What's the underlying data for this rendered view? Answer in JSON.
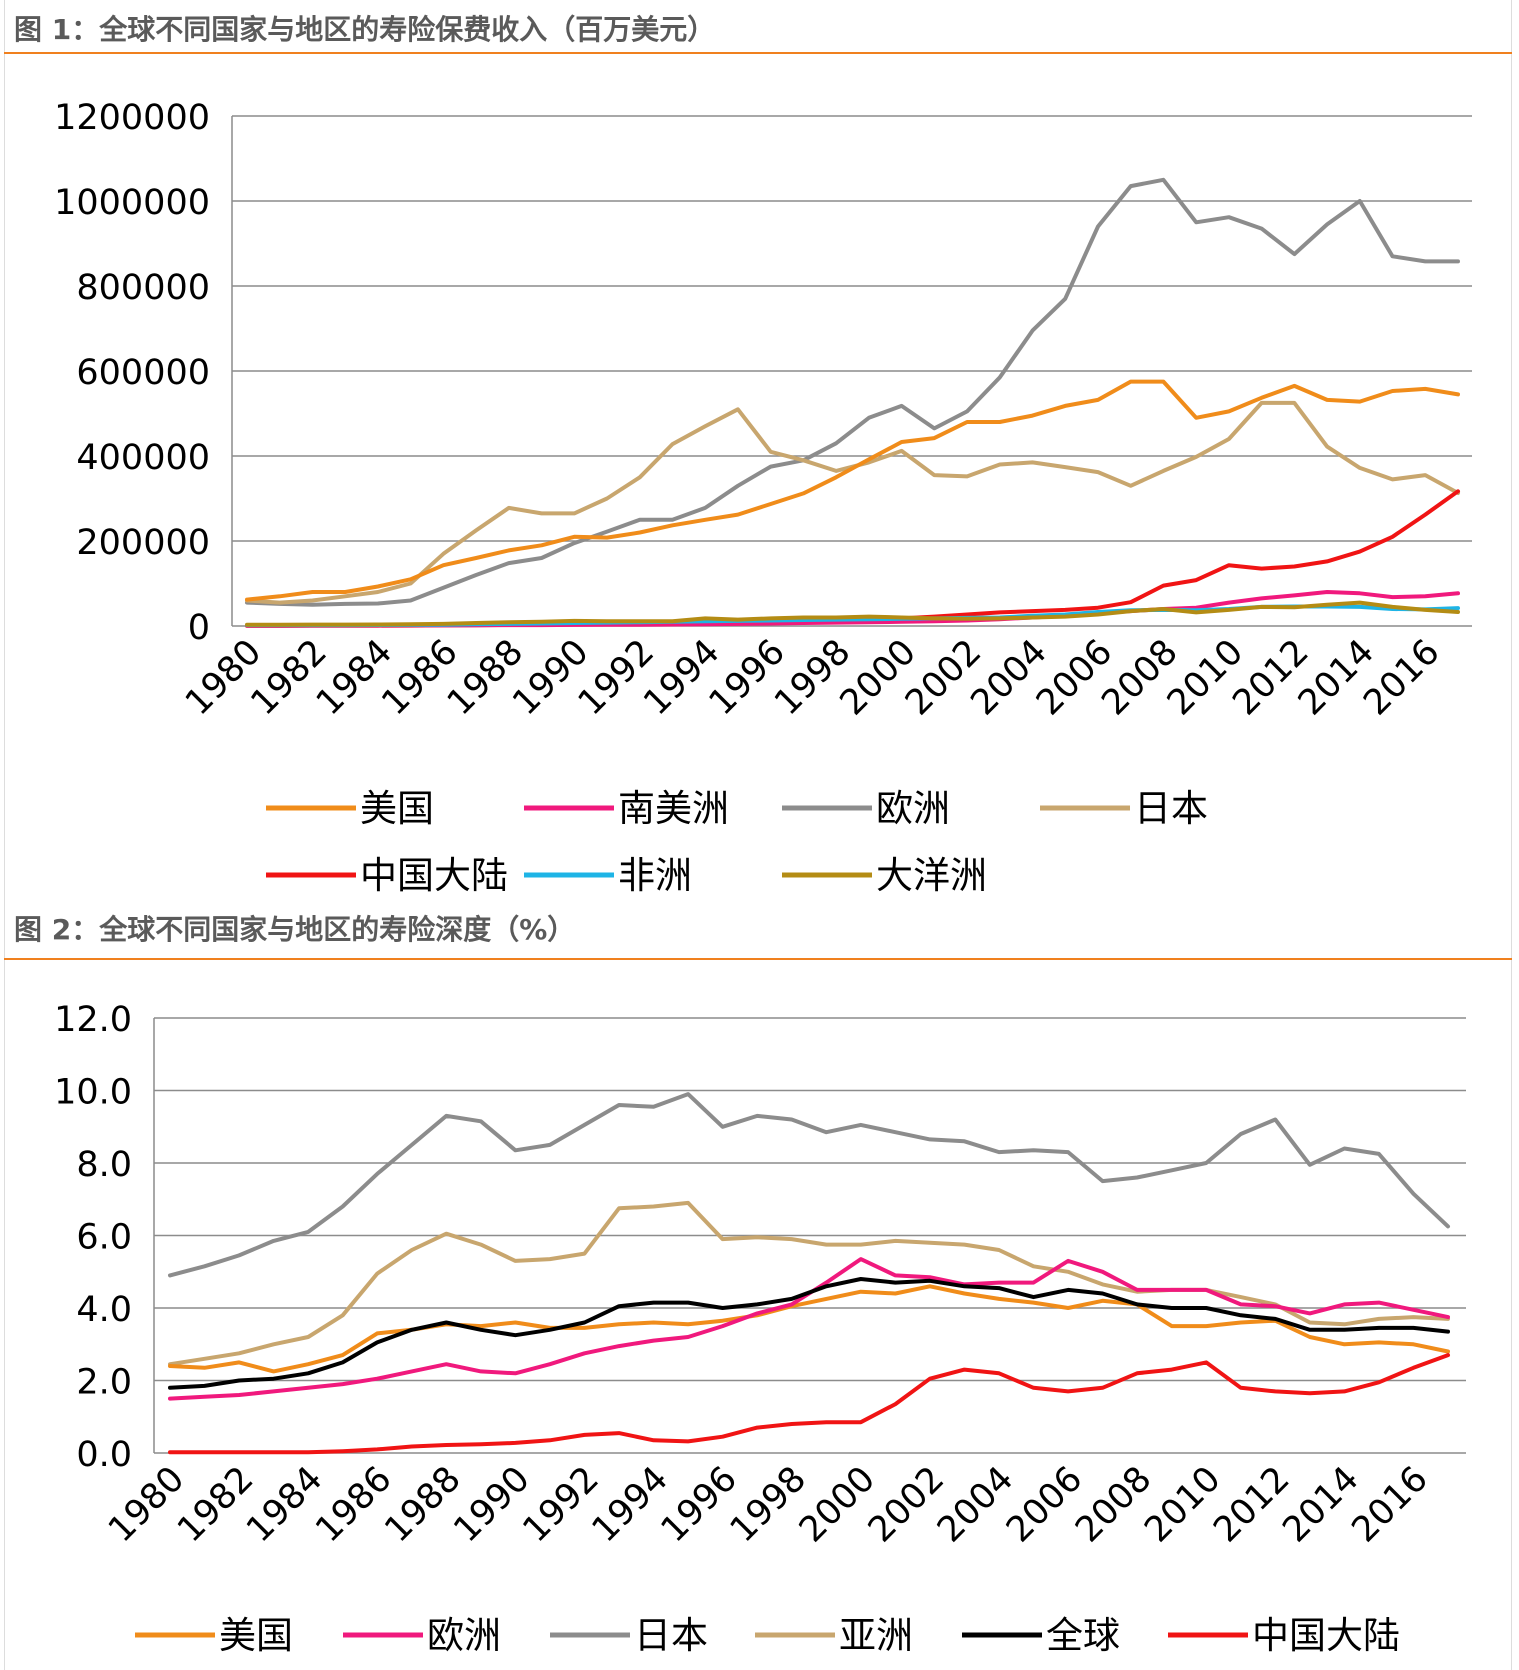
{
  "colors": {
    "us": "#f08c1a",
    "south_america": "#f0197d",
    "europe": "#8c8c8c",
    "japan": "#c8a66e",
    "china": "#f01414",
    "africa": "#1eb4e6",
    "oceania": "#b48c14",
    "asia": "#c8a66e",
    "global": "#000000",
    "europe2": "#f0197d",
    "japan2": "#8c8c8c",
    "rule": "#f0801e",
    "grid": "#8c8c8c"
  },
  "chart_data": [
    {
      "type": "line",
      "title": "图 1：全球不同国家与地区的寿险保费收入（百万美元）",
      "ylim": [
        0,
        1200000
      ],
      "yticks": [
        "1200000",
        "1000000",
        "800000",
        "600000",
        "400000",
        "200000",
        "0"
      ],
      "ytick_values": [
        1200000,
        1000000,
        800000,
        600000,
        400000,
        200000,
        0
      ],
      "xtick_labels": [
        "1980",
        "1982",
        "1984",
        "1986",
        "1988",
        "1990",
        "1992",
        "1994",
        "1996",
        "1998",
        "2000",
        "2002",
        "2004",
        "2006",
        "2008",
        "2010",
        "2012",
        "2014",
        "2016"
      ],
      "x": [
        1980,
        1981,
        1982,
        1983,
        1984,
        1985,
        1986,
        1987,
        1988,
        1989,
        1990,
        1991,
        1992,
        1993,
        1994,
        1995,
        1996,
        1997,
        1998,
        1999,
        2000,
        2001,
        2002,
        2003,
        2004,
        2005,
        2006,
        2007,
        2008,
        2009,
        2010,
        2011,
        2012,
        2013,
        2014,
        2015,
        2016,
        2017
      ],
      "series": [
        {
          "name": "欧洲",
          "color_key": "europe",
          "values": [
            55000,
            52000,
            50000,
            52000,
            53000,
            60000,
            90000,
            120000,
            148000,
            160000,
            195000,
            222000,
            250000,
            250000,
            278000,
            330000,
            375000,
            390000,
            430000,
            490000,
            518000,
            465000,
            505000,
            585000,
            695000,
            770000,
            940000,
            1035000,
            1050000,
            950000,
            962000,
            935000,
            875000,
            945000,
            1000000,
            870000,
            858000,
            858000
          ]
        },
        {
          "name": "日本",
          "color_key": "japan",
          "values": [
            60000,
            55000,
            60000,
            70000,
            80000,
            100000,
            170000,
            225000,
            278000,
            265000,
            265000,
            300000,
            350000,
            428000,
            470000,
            510000,
            410000,
            390000,
            365000,
            385000,
            412000,
            355000,
            352000,
            380000,
            385000,
            374000,
            362000,
            330000,
            365000,
            398000,
            440000,
            525000,
            525000,
            422000,
            372000,
            345000,
            355000,
            313000
          ]
        },
        {
          "name": "美国",
          "color_key": "us",
          "values": [
            62000,
            70000,
            80000,
            80000,
            93000,
            110000,
            143000,
            160000,
            178000,
            190000,
            210000,
            208000,
            220000,
            237000,
            250000,
            262000,
            287000,
            312000,
            350000,
            392000,
            433000,
            442000,
            480000,
            480000,
            495000,
            518000,
            532000,
            575000,
            575000,
            490000,
            505000,
            537000,
            565000,
            532000,
            528000,
            553000,
            558000,
            545000
          ]
        },
        {
          "name": "中国大陆",
          "color_key": "china",
          "values": [
            200,
            300,
            400,
            500,
            700,
            1000,
            1300,
            1800,
            2500,
            3000,
            3500,
            4500,
            6000,
            7000,
            5000,
            6000,
            8000,
            11000,
            13000,
            15000,
            18000,
            22000,
            27000,
            32000,
            35000,
            38000,
            43000,
            56000,
            95000,
            108000,
            143000,
            135000,
            140000,
            152000,
            175000,
            210000,
            262000,
            317000
          ]
        },
        {
          "name": "南美洲",
          "color_key": "south_america",
          "values": [
            1000,
            1000,
            1100,
            1100,
            1200,
            1300,
            1500,
            1700,
            2000,
            2200,
            2500,
            2800,
            3000,
            3500,
            4000,
            5000,
            6000,
            7000,
            8000,
            9000,
            10000,
            11000,
            13000,
            16000,
            20000,
            24000,
            30000,
            35000,
            40000,
            43000,
            55000,
            65000,
            72000,
            80000,
            77000,
            68000,
            70000,
            77000
          ]
        },
        {
          "name": "非洲",
          "color_key": "africa",
          "values": [
            2000,
            2000,
            2100,
            2200,
            2300,
            2500,
            3000,
            4000,
            5000,
            6000,
            7000,
            8000,
            9000,
            10000,
            11000,
            12000,
            13000,
            14000,
            15000,
            16000,
            17000,
            18000,
            19000,
            20000,
            24000,
            27000,
            33000,
            37000,
            38000,
            37000,
            40000,
            45000,
            46000,
            46000,
            45000,
            40000,
            39000,
            42000
          ]
        },
        {
          "name": "大洋洲",
          "color_key": "oceania",
          "values": [
            3000,
            3000,
            3200,
            3300,
            3500,
            4000,
            5000,
            7000,
            9000,
            10000,
            12000,
            11000,
            11000,
            11000,
            18000,
            15000,
            18000,
            20000,
            20000,
            22000,
            20000,
            18000,
            17000,
            18000,
            20000,
            22000,
            27000,
            35000,
            40000,
            32000,
            38000,
            45000,
            44000,
            50000,
            55000,
            45000,
            38000,
            33000
          ]
        }
      ],
      "legend": [
        {
          "label": "美国",
          "color_key": "us"
        },
        {
          "label": "南美洲",
          "color_key": "south_america"
        },
        {
          "label": "欧洲",
          "color_key": "europe"
        },
        {
          "label": "日本",
          "color_key": "japan"
        },
        {
          "label": "中国大陆",
          "color_key": "china"
        },
        {
          "label": "非洲",
          "color_key": "africa"
        },
        {
          "label": "大洋洲",
          "color_key": "oceania"
        }
      ]
    },
    {
      "type": "line",
      "title": "图 2：全球不同国家与地区的寿险深度（%）",
      "ylim": [
        0,
        12
      ],
      "yticks": [
        "12.0",
        "10.0",
        "8.0",
        "6.0",
        "4.0",
        "2.0",
        "0.0"
      ],
      "ytick_values": [
        12,
        10,
        8,
        6,
        4,
        2,
        0
      ],
      "xtick_labels": [
        "1980",
        "1982",
        "1984",
        "1986",
        "1988",
        "1990",
        "1992",
        "1994",
        "1996",
        "1998",
        "2000",
        "2002",
        "2004",
        "2006",
        "2008",
        "2010",
        "2012",
        "2014",
        "2016"
      ],
      "x": [
        1980,
        1981,
        1982,
        1983,
        1984,
        1985,
        1986,
        1987,
        1988,
        1989,
        1990,
        1991,
        1992,
        1993,
        1994,
        1995,
        1996,
        1997,
        1998,
        1999,
        2000,
        2001,
        2002,
        2003,
        2004,
        2005,
        2006,
        2007,
        2008,
        2009,
        2010,
        2011,
        2012,
        2013,
        2014,
        2015,
        2016,
        2017
      ],
      "series": [
        {
          "name": "日本",
          "color_key": "japan2",
          "values": [
            4.9,
            5.15,
            5.45,
            5.85,
            6.1,
            6.8,
            7.7,
            8.5,
            9.3,
            9.15,
            8.35,
            8.5,
            9.05,
            9.6,
            9.55,
            9.9,
            9.0,
            9.3,
            9.2,
            8.85,
            9.05,
            8.85,
            8.65,
            8.6,
            8.3,
            8.35,
            8.3,
            7.5,
            7.6,
            7.8,
            8.0,
            8.8,
            9.2,
            7.95,
            8.4,
            8.25,
            7.15,
            6.25
          ]
        },
        {
          "name": "亚洲",
          "color_key": "asia",
          "values": [
            2.45,
            2.6,
            2.75,
            3.0,
            3.2,
            3.8,
            4.95,
            5.6,
            6.05,
            5.75,
            5.3,
            5.35,
            5.5,
            6.75,
            6.8,
            6.9,
            5.9,
            5.95,
            5.9,
            5.75,
            5.75,
            5.85,
            5.8,
            5.75,
            5.6,
            5.15,
            5.0,
            4.65,
            4.45,
            4.5,
            4.5,
            4.3,
            4.1,
            3.6,
            3.55,
            3.7,
            3.75,
            3.7
          ]
        },
        {
          "name": "美国",
          "color_key": "us",
          "values": [
            2.4,
            2.35,
            2.5,
            2.25,
            2.45,
            2.7,
            3.3,
            3.4,
            3.55,
            3.5,
            3.6,
            3.45,
            3.45,
            3.55,
            3.6,
            3.55,
            3.65,
            3.8,
            4.05,
            4.25,
            4.45,
            4.4,
            4.6,
            4.4,
            4.25,
            4.15,
            4.0,
            4.2,
            4.1,
            3.5,
            3.5,
            3.6,
            3.65,
            3.2,
            3.0,
            3.05,
            3.0,
            2.8
          ]
        },
        {
          "name": "欧洲",
          "color_key": "europe2",
          "values": [
            1.5,
            1.55,
            1.6,
            1.7,
            1.8,
            1.9,
            2.05,
            2.25,
            2.45,
            2.25,
            2.2,
            2.45,
            2.75,
            2.95,
            3.1,
            3.2,
            3.5,
            3.85,
            4.1,
            4.7,
            5.35,
            4.9,
            4.85,
            4.65,
            4.7,
            4.7,
            5.3,
            5.0,
            4.5,
            4.5,
            4.5,
            4.1,
            4.05,
            3.85,
            4.1,
            4.15,
            3.95,
            3.75
          ]
        },
        {
          "name": "全球",
          "color_key": "global",
          "values": [
            1.8,
            1.85,
            2.0,
            2.05,
            2.2,
            2.5,
            3.05,
            3.4,
            3.6,
            3.4,
            3.25,
            3.4,
            3.6,
            4.05,
            4.15,
            4.15,
            4.0,
            4.1,
            4.25,
            4.6,
            4.8,
            4.7,
            4.75,
            4.6,
            4.55,
            4.3,
            4.5,
            4.4,
            4.1,
            4.0,
            4.0,
            3.8,
            3.7,
            3.4,
            3.4,
            3.45,
            3.45,
            3.35
          ]
        },
        {
          "name": "中国大陆",
          "color_key": "china",
          "values": [
            0.02,
            0.02,
            0.02,
            0.02,
            0.02,
            0.05,
            0.1,
            0.18,
            0.22,
            0.24,
            0.28,
            0.35,
            0.5,
            0.55,
            0.35,
            0.32,
            0.45,
            0.7,
            0.8,
            0.85,
            0.85,
            1.35,
            2.05,
            2.3,
            2.2,
            1.8,
            1.7,
            1.8,
            2.2,
            2.3,
            2.5,
            1.8,
            1.7,
            1.65,
            1.7,
            1.95,
            2.35,
            2.7
          ]
        }
      ],
      "legend": [
        {
          "label": "美国",
          "color_key": "us"
        },
        {
          "label": "欧洲",
          "color_key": "europe2"
        },
        {
          "label": "日本",
          "color_key": "japan2"
        },
        {
          "label": "亚洲",
          "color_key": "asia"
        },
        {
          "label": "全球",
          "color_key": "global"
        },
        {
          "label": "中国大陆",
          "color_key": "china"
        }
      ]
    }
  ]
}
